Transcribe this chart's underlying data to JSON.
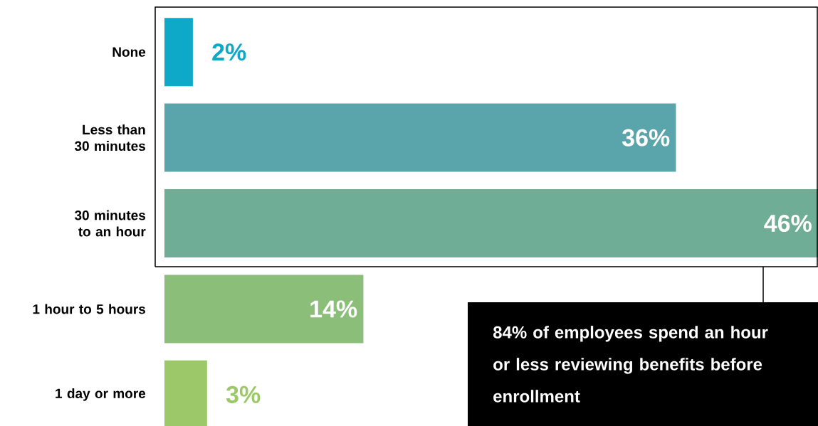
{
  "chart_data": {
    "type": "bar",
    "orientation": "horizontal",
    "categories": [
      "None",
      "Less than 30 minutes",
      "30 minutes to an hour",
      "1 hour to 5 hours",
      "1 day or more"
    ],
    "values": [
      2,
      36,
      46,
      14,
      3
    ],
    "colors": [
      "#0ea8c9",
      "#5aa5ab",
      "#70ad96",
      "#8bbf79",
      "#9cc86a"
    ],
    "value_labels": [
      "2%",
      "36%",
      "46%",
      "14%",
      "3%"
    ],
    "xlim": [
      0,
      46
    ],
    "annotations": [
      "84% of employees spend an hour or less reviewing benefits before enrollment"
    ]
  }
}
